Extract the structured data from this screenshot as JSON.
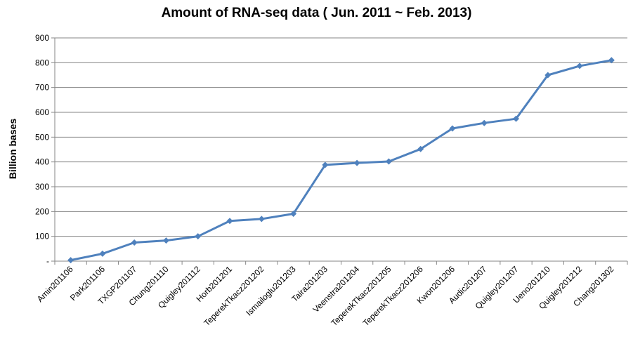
{
  "chart_data": {
    "type": "line",
    "title": "Amount of RNA-seq data ( Jun. 2011 ~ Feb. 2013)",
    "xlabel": "",
    "ylabel": "Billion bases",
    "categories": [
      "Amin201106",
      "Park201106",
      "TXGP201107",
      "Chung201110",
      "Quigley201112",
      "Horb201201",
      "TeperekTkacz201202",
      "Ismailoglu201203",
      "Taira201203",
      "Veenstra201204",
      "TeperekTkacz201205",
      "TeperekTkacz201206",
      "Kwon201206",
      "Audic201207",
      "Quigley201207",
      "Ueno201210",
      "Quigley201212",
      "Chang201302"
    ],
    "series": [
      {
        "values": [
          4,
          30,
          75,
          83,
          100,
          162,
          170,
          191,
          388,
          396,
          402,
          452,
          535,
          557,
          574,
          750,
          787,
          810
        ]
      }
    ],
    "ylim": [
      0,
      900
    ],
    "yticks": [
      "-",
      "100",
      "200",
      "300",
      "400",
      "500",
      "600",
      "700",
      "800",
      "900"
    ],
    "grid": "horizontal",
    "legend": "none",
    "colors": {
      "line": "#4f81bd",
      "grid": "#868686",
      "axis": "#868686"
    }
  }
}
